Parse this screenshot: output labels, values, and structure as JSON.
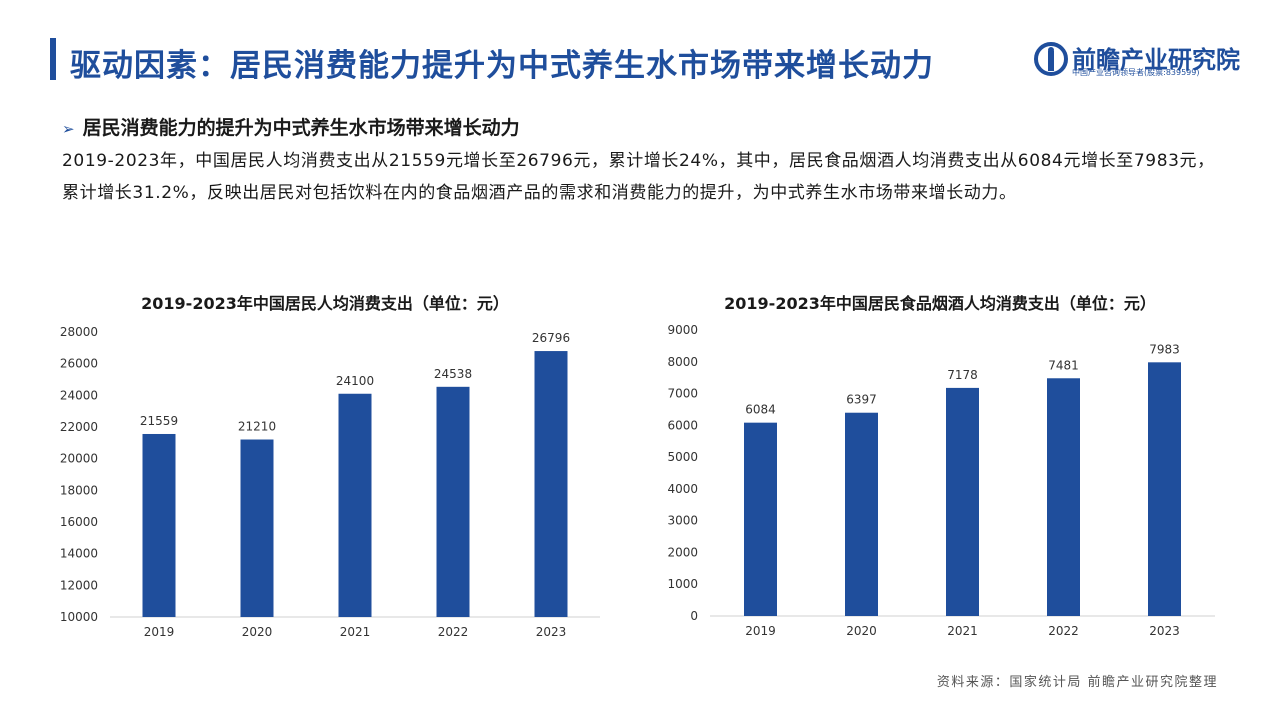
{
  "header": {
    "title": "驱动因素：居民消费能力提升为中式养生水市场带来增长动力",
    "logo_name": "前瞻产业研究院",
    "logo_tagline": "中国产业咨询领导者(股票:839599)",
    "accent_color": "#1f4e9c"
  },
  "section": {
    "heading": "居民消费能力的提升为中式养生水市场带来增长动力",
    "body": "2019-2023年，中国居民人均消费支出从21559元增长至26796元，累计增长24%，其中，居民食品烟酒人均消费支出从6084元增长至7983元，累计增长31.2%，反映出居民对包括饮料在内的食品烟酒产品的需求和消费能力的提升，为中式养生水市场带来增长动力。"
  },
  "footer": {
    "source": "资料来源：国家统计局 前瞻产业研究院整理"
  },
  "chart_data": [
    {
      "type": "bar",
      "title": "2019-2023年中国居民人均消费支出（单位：元）",
      "categories": [
        "2019",
        "2020",
        "2021",
        "2022",
        "2023"
      ],
      "values": [
        21559,
        21210,
        24100,
        24538,
        26796
      ],
      "ylim": [
        10000,
        28000
      ],
      "yticks": [
        10000,
        12000,
        14000,
        16000,
        18000,
        20000,
        22000,
        24000,
        26000,
        28000
      ],
      "xlabel": "",
      "ylabel": "",
      "grid": false,
      "color": "#1f4e9c"
    },
    {
      "type": "bar",
      "title": "2019-2023年中国居民食品烟酒人均消费支出（单位：元）",
      "categories": [
        "2019",
        "2020",
        "2021",
        "2022",
        "2023"
      ],
      "values": [
        6084,
        6397,
        7178,
        7481,
        7983
      ],
      "ylim": [
        0,
        9000
      ],
      "yticks": [
        0,
        1000,
        2000,
        3000,
        4000,
        5000,
        6000,
        7000,
        8000,
        9000
      ],
      "xlabel": "",
      "ylabel": "",
      "grid": false,
      "color": "#1f4e9c"
    }
  ]
}
